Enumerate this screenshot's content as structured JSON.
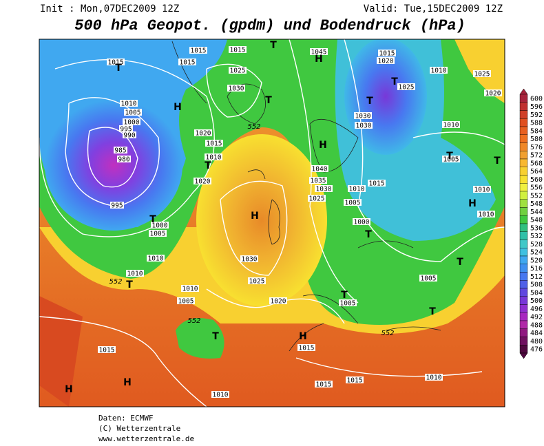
{
  "header": {
    "init": "Init : Mon,07DEC2009 12Z",
    "valid": "Valid: Tue,15DEC2009 12Z",
    "title": "500 hPa Geopot. (gpdm) und Bodendruck (hPa)"
  },
  "color_scale": {
    "values": [
      600,
      596,
      592,
      588,
      584,
      580,
      576,
      572,
      568,
      564,
      560,
      556,
      552,
      548,
      544,
      540,
      536,
      532,
      528,
      524,
      520,
      516,
      512,
      508,
      504,
      500,
      496,
      492,
      488,
      484,
      480,
      476
    ],
    "colors": [
      "#a8243c",
      "#c03030",
      "#d04028",
      "#e05020",
      "#e86020",
      "#f07020",
      "#f08828",
      "#f0a030",
      "#f8b830",
      "#f8d030",
      "#f8e030",
      "#f0f040",
      "#d0f040",
      "#a0e040",
      "#70d040",
      "#40c840",
      "#30c080",
      "#30c0a8",
      "#40c8c8",
      "#40c0e0",
      "#40a8f0",
      "#4090f0",
      "#4878f0",
      "#5060e8",
      "#6048e0",
      "#7838d8",
      "#9030d0",
      "#a828c0",
      "#b028a8",
      "#901880",
      "#701060",
      "#500840"
    ]
  },
  "map_labels": [
    "1015",
    "1015",
    "1015",
    "1015",
    "1045",
    "1015",
    "1020",
    "1010",
    "1025",
    "1020",
    "1025",
    "1030",
    "1025",
    "1010",
    "1005",
    "1000",
    "995",
    "990",
    "1030",
    "1030",
    "1010",
    "1020",
    "1015",
    "1010",
    "1005",
    "985",
    "980",
    "1040",
    "1035",
    "1030",
    "1010",
    "1015",
    "1025",
    "1005",
    "1010",
    "1020",
    "995",
    "1000",
    "1005",
    "1010",
    "1000",
    "1030",
    "1010",
    "1010",
    "1025",
    "1005",
    "1010",
    "1005",
    "1020",
    "1005",
    "1015",
    "1015",
    "1010",
    "1015",
    "1015",
    "1010",
    "552",
    "552",
    "552",
    "552",
    "H",
    "H",
    "H",
    "H",
    "H",
    "H",
    "H",
    "H",
    "T",
    "T",
    "T",
    "T",
    "T",
    "T",
    "T",
    "T",
    "T",
    "T",
    "T",
    "T",
    "T",
    "T",
    "T"
  ],
  "footer": {
    "source": "Daten: ECMWF",
    "copyright": "(C) Wetterzentrale",
    "url": "www.wetterzentrale.de"
  }
}
